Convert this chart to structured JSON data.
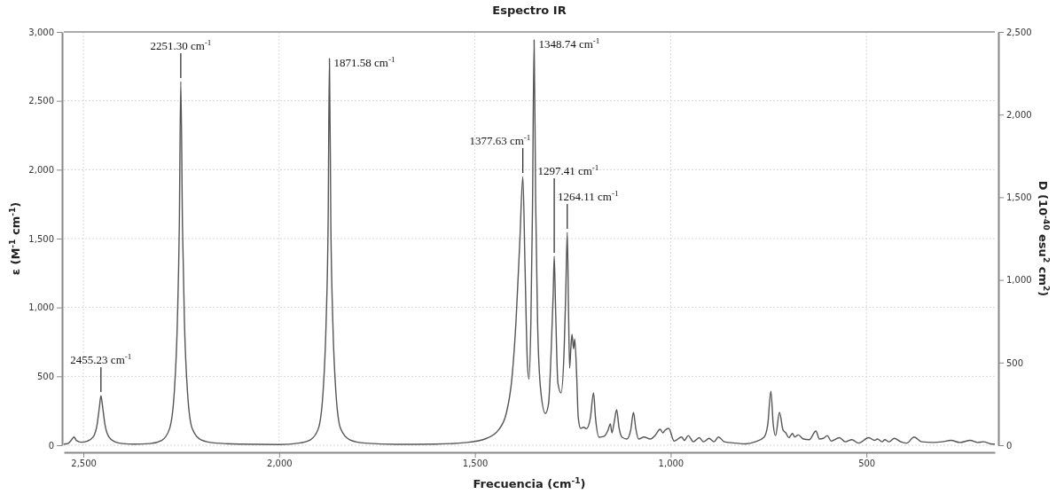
{
  "chart_data": {
    "type": "line",
    "title": "Espectro IR",
    "xlabel": "Frecuencia (cm$^{-1}$)",
    "ylabel": "ε (M$^{-1}$ cm$^{-1}$)",
    "y2label": "D (10$^{-40}$ esu$^{2}$ cm$^{2}$)",
    "color": "#555555",
    "grid": true,
    "xlim": [
      2550,
      172
    ],
    "xticks": [
      {
        "value": 2500,
        "label": "2,500"
      },
      {
        "value": 2000,
        "label": "2,000"
      },
      {
        "value": 1500,
        "label": "1,500"
      },
      {
        "value": 1000,
        "label": "1,000"
      },
      500
    ],
    "ylim": [
      0,
      3000
    ],
    "yticks": [
      0,
      500,
      {
        "value": 1000,
        "label": "1,000"
      },
      {
        "value": 1500,
        "label": "1,500"
      },
      {
        "value": 2000,
        "label": "2,000"
      },
      {
        "value": 2500,
        "label": "2,500"
      },
      {
        "value": 3000,
        "label": "3,000"
      }
    ],
    "y2lim": [
      0,
      2500
    ],
    "y2ticks": [
      0,
      500,
      {
        "value": 1000,
        "label": "1,000"
      },
      {
        "value": 1500,
        "label": "1,500"
      },
      {
        "value": 2000,
        "label": "2,000"
      },
      {
        "value": 2500,
        "label": "2,500"
      }
    ],
    "x": [
      2550,
      2540,
      2530,
      2524,
      2518,
      2505,
      2490,
      2475,
      2465,
      2459,
      2455.23,
      2451,
      2445,
      2435,
      2420,
      2400,
      2370,
      2330,
      2300,
      2280,
      2268,
      2260,
      2255,
      2251.3,
      2247,
      2242,
      2234,
      2222,
      2200,
      2160,
      2100,
      2000,
      1950,
      1920,
      1900,
      1888,
      1880,
      1875,
      1871.58,
      1868,
      1863,
      1855,
      1843,
      1820,
      1780,
      1700,
      1600,
      1520,
      1470,
      1440,
      1420,
      1405,
      1395,
      1385,
      1377.63,
      1372,
      1366,
      1362,
      1357,
      1353,
      1348.74,
      1345,
      1340,
      1332,
      1320,
      1312,
      1305,
      1300,
      1297.41,
      1294,
      1288,
      1280,
      1272,
      1268,
      1264.11,
      1261,
      1258,
      1255,
      1252,
      1248,
      1245,
      1240,
      1236,
      1230,
      1222,
      1215,
      1205,
      1197,
      1192,
      1183,
      1170,
      1160,
      1154,
      1150,
      1144,
      1138,
      1132,
      1124,
      1112,
      1102,
      1095,
      1089,
      1082,
      1068,
      1052,
      1040,
      1027,
      1020,
      1014,
      1005,
      991,
      972,
      965,
      955,
      942,
      927,
      916,
      902,
      889,
      878,
      863,
      833,
      810,
      784,
      761,
      752,
      744,
      738,
      732,
      722,
      713,
      706,
      698,
      689,
      683,
      674,
      661,
      646,
      629,
      620,
      610,
      600,
      590,
      569,
      554,
      537,
      520,
      494,
      479,
      472,
      460,
      453,
      442,
      429,
      412,
      397,
      378,
      359,
      329,
      306,
      284,
      261,
      235,
      216,
      201,
      182,
      172
    ],
    "values": [
      8,
      12,
      40,
      60,
      35,
      22,
      30,
      60,
      150,
      280,
      360,
      280,
      150,
      60,
      25,
      12,
      8,
      12,
      35,
      120,
      380,
      900,
      1600,
      2640,
      1600,
      900,
      380,
      120,
      40,
      15,
      8,
      5,
      15,
      40,
      120,
      380,
      900,
      1600,
      2807,
      1600,
      900,
      380,
      120,
      40,
      15,
      6,
      8,
      20,
      50,
      110,
      230,
      500,
      900,
      1500,
      1950,
      1300,
      600,
      480,
      900,
      1700,
      2942,
      1800,
      900,
      400,
      230,
      300,
      700,
      1100,
      1371,
      1000,
      450,
      380,
      700,
      1100,
      1545,
      1000,
      560,
      700,
      805,
      700,
      772,
      500,
      200,
      122,
      130,
      120,
      200,
      380,
      200,
      58,
      65,
      110,
      155,
      90,
      170,
      258,
      130,
      58,
      45,
      110,
      238,
      120,
      45,
      60,
      45,
      70,
      116,
      90,
      110,
      122,
      30,
      60,
      35,
      70,
      25,
      55,
      25,
      50,
      25,
      60,
      25,
      15,
      10,
      25,
      60,
      150,
      392,
      150,
      70,
      238,
      110,
      90,
      55,
      85,
      60,
      75,
      45,
      40,
      103,
      45,
      50,
      70,
      30,
      55,
      25,
      40,
      15,
      55,
      35,
      45,
      25,
      40,
      25,
      50,
      25,
      15,
      60,
      25,
      20,
      25,
      35,
      20,
      35,
      20,
      25,
      10,
      8
    ],
    "annotations": [
      {
        "text": "2455.23 cm$^{-1}$",
        "x": 2455.23,
        "y": 360
      },
      {
        "text": "2251.30 cm$^{-1}$",
        "x": 2251.3,
        "y": 2640
      },
      {
        "text": "1871.58 cm$^{-1}$",
        "x": 1871.58,
        "y": 2807
      },
      {
        "text": "1377.63 cm$^{-1}$",
        "x": 1377.63,
        "y": 1950
      },
      {
        "text": "1348.74 cm$^{-1}$",
        "x": 1348.74,
        "y": 2942
      },
      {
        "text": "1297.41 cm$^{-1}$",
        "x": 1297.41,
        "y": 1371
      },
      {
        "text": "1264.11 cm$^{-1}$",
        "x": 1264.11,
        "y": 1545
      }
    ]
  }
}
